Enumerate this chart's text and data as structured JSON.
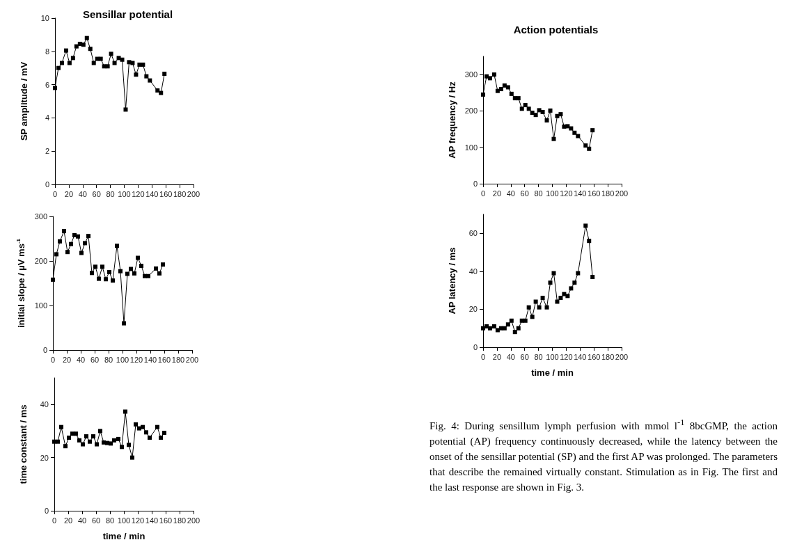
{
  "chart_data": [
    {
      "type": "line",
      "title": "Sensillar potential",
      "ylabel": "SP amplitude / mV",
      "marker": "square",
      "color": "#000000",
      "x": [
        0,
        5,
        10,
        16,
        21,
        26,
        31,
        36,
        41,
        46,
        51,
        56,
        61,
        66,
        71,
        76,
        81,
        86,
        92,
        97,
        102,
        107,
        112,
        117,
        122,
        127,
        132,
        137,
        148,
        153,
        158
      ],
      "values": [
        5.8,
        7.0,
        7.3,
        8.05,
        7.3,
        7.6,
        8.3,
        8.45,
        8.4,
        8.8,
        8.15,
        7.3,
        7.55,
        7.55,
        7.1,
        7.1,
        7.85,
        7.3,
        7.6,
        7.5,
        4.5,
        7.35,
        7.3,
        6.6,
        7.2,
        7.2,
        6.5,
        6.25,
        5.65,
        5.5,
        6.65
      ],
      "xlim": [
        0,
        200
      ],
      "xticks": [
        0,
        20,
        40,
        60,
        80,
        100,
        120,
        140,
        160,
        180,
        200
      ],
      "ylim": [
        0,
        10
      ],
      "yticks": [
        0,
        2,
        4,
        6,
        8,
        10
      ]
    },
    {
      "type": "line",
      "ylabel": "initial slope / µV ms$^{-1}$",
      "marker": "square",
      "color": "#000000",
      "x": [
        0,
        5,
        10,
        16,
        21,
        26,
        31,
        36,
        41,
        46,
        51,
        56,
        61,
        66,
        71,
        76,
        81,
        86,
        92,
        97,
        102,
        107,
        112,
        117,
        122,
        127,
        132,
        137,
        148,
        153,
        158
      ],
      "values": [
        158,
        215,
        244,
        267,
        220,
        238,
        258,
        255,
        218,
        240,
        256,
        173,
        187,
        160,
        187,
        159,
        175,
        156,
        234,
        177,
        60,
        171,
        182,
        172,
        207,
        189,
        166,
        166,
        183,
        172,
        192
      ],
      "xlim": [
        0,
        200
      ],
      "xticks": [
        0,
        20,
        40,
        60,
        80,
        100,
        120,
        140,
        160,
        180,
        200
      ],
      "ylim": [
        0,
        300
      ],
      "yticks": [
        0,
        100,
        200,
        300
      ]
    },
    {
      "type": "line",
      "xlabel": "time / min",
      "ylabel": "time constant / ms",
      "marker": "square",
      "color": "#000000",
      "x": [
        0,
        5,
        10,
        16,
        21,
        26,
        31,
        36,
        41,
        46,
        51,
        56,
        61,
        66,
        71,
        76,
        81,
        86,
        92,
        97,
        102,
        107,
        112,
        117,
        122,
        127,
        132,
        137,
        148,
        153,
        158
      ],
      "values": [
        26,
        26,
        31.5,
        24.3,
        27.5,
        29,
        29,
        26.5,
        25,
        28,
        26,
        28,
        25,
        30,
        25.7,
        25.5,
        25.3,
        26.5,
        27,
        24,
        37.3,
        24.8,
        20,
        32.5,
        31,
        31.5,
        29.5,
        27.5,
        31.5,
        27.5,
        29.3
      ],
      "xlim": [
        0,
        200
      ],
      "xticks": [
        0,
        20,
        40,
        60,
        80,
        100,
        120,
        140,
        160,
        180,
        200
      ],
      "ylim": [
        0,
        50
      ],
      "yticks": [
        0,
        20,
        40
      ]
    },
    {
      "type": "line",
      "title": "Action potentials",
      "ylabel": "AP frequency / Hz",
      "marker": "square",
      "color": "#000000",
      "x": [
        0,
        5,
        10,
        16,
        21,
        26,
        31,
        36,
        41,
        46,
        51,
        56,
        61,
        66,
        71,
        76,
        81,
        86,
        92,
        97,
        102,
        107,
        112,
        117,
        122,
        127,
        132,
        137,
        148,
        153,
        158
      ],
      "values": [
        245,
        295,
        290,
        300,
        255,
        260,
        270,
        265,
        247,
        235,
        235,
        206,
        216,
        206,
        195,
        189,
        202,
        197,
        174,
        201,
        123,
        186,
        191,
        157,
        158,
        152,
        140,
        131,
        105,
        96,
        147
      ],
      "xlim": [
        0,
        200
      ],
      "xticks": [
        0,
        20,
        40,
        60,
        80,
        100,
        120,
        140,
        160,
        180,
        200
      ],
      "ylim": [
        0,
        350
      ],
      "yticks": [
        0,
        100,
        200,
        300
      ]
    },
    {
      "type": "line",
      "xlabel": "time / min",
      "ylabel": "AP latency / ms",
      "marker": "square",
      "color": "#000000",
      "x": [
        0,
        5,
        10,
        16,
        21,
        26,
        31,
        36,
        41,
        46,
        51,
        56,
        61,
        66,
        71,
        76,
        81,
        86,
        92,
        97,
        102,
        107,
        112,
        117,
        122,
        127,
        132,
        137,
        148,
        153,
        158
      ],
      "values": [
        10,
        11,
        10,
        11,
        9,
        10,
        10,
        12,
        14,
        8,
        10,
        14,
        14,
        21,
        16,
        24,
        21,
        26,
        21,
        34,
        39,
        24,
        26,
        28,
        27,
        31,
        34,
        39,
        64,
        56,
        37
      ],
      "xlim": [
        0,
        200
      ],
      "xticks": [
        0,
        20,
        40,
        60,
        80,
        100,
        120,
        140,
        160,
        180,
        200
      ],
      "ylim": [
        0,
        70
      ],
      "yticks": [
        0,
        20,
        40,
        60
      ],
      "annotations": [
        "Fig. 4: During sensillum lymph perfusion with mmol l$^{-1}$ 8bcGMP, the action potential (AP) frequency continuously decreased, while the latency between the onset of the sensillar potential (SP) and the first AP was prolonged. The parameters that describe the remained virtually constant. Stimulation as in Fig. The first and the last response are shown in Fig. 3."
      ]
    }
  ]
}
